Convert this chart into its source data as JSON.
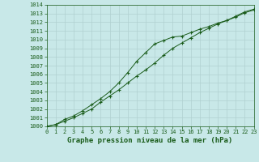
{
  "title": "Graphe pression niveau de la mer (hPa)",
  "x_values": [
    0,
    1,
    2,
    3,
    4,
    5,
    6,
    7,
    8,
    9,
    10,
    11,
    12,
    13,
    14,
    15,
    16,
    17,
    18,
    19,
    20,
    21,
    22,
    23
  ],
  "line1": [
    1000.0,
    1000.2,
    1000.8,
    1001.2,
    1001.8,
    1002.5,
    1003.2,
    1004.0,
    1005.0,
    1006.2,
    1007.5,
    1008.5,
    1009.5,
    1009.9,
    1010.3,
    1010.4,
    1010.8,
    1011.2,
    1011.5,
    1011.9,
    1012.2,
    1012.6,
    1013.1,
    1013.4
  ],
  "line2": [
    1000.0,
    1000.2,
    1000.6,
    1001.0,
    1001.5,
    1002.0,
    1002.8,
    1003.5,
    1004.2,
    1005.0,
    1005.8,
    1006.5,
    1007.3,
    1008.2,
    1009.0,
    1009.6,
    1010.2,
    1010.8,
    1011.3,
    1011.8,
    1012.2,
    1012.7,
    1013.2,
    1013.5
  ],
  "line_color": "#1a5c1a",
  "bg_color": "#c8e8e8",
  "grid_color": "#b0d0d0",
  "ylim": [
    1000,
    1014
  ],
  "xlim": [
    0,
    23
  ],
  "yticks": [
    1000,
    1001,
    1002,
    1003,
    1004,
    1005,
    1006,
    1007,
    1008,
    1009,
    1010,
    1011,
    1012,
    1013,
    1014
  ],
  "xticks": [
    0,
    1,
    2,
    3,
    4,
    5,
    6,
    7,
    8,
    9,
    10,
    11,
    12,
    13,
    14,
    15,
    16,
    17,
    18,
    19,
    20,
    21,
    22,
    23
  ],
  "title_fontsize": 6.5,
  "tick_fontsize": 5.0,
  "figwidth": 3.2,
  "figheight": 2.0,
  "dpi": 100
}
